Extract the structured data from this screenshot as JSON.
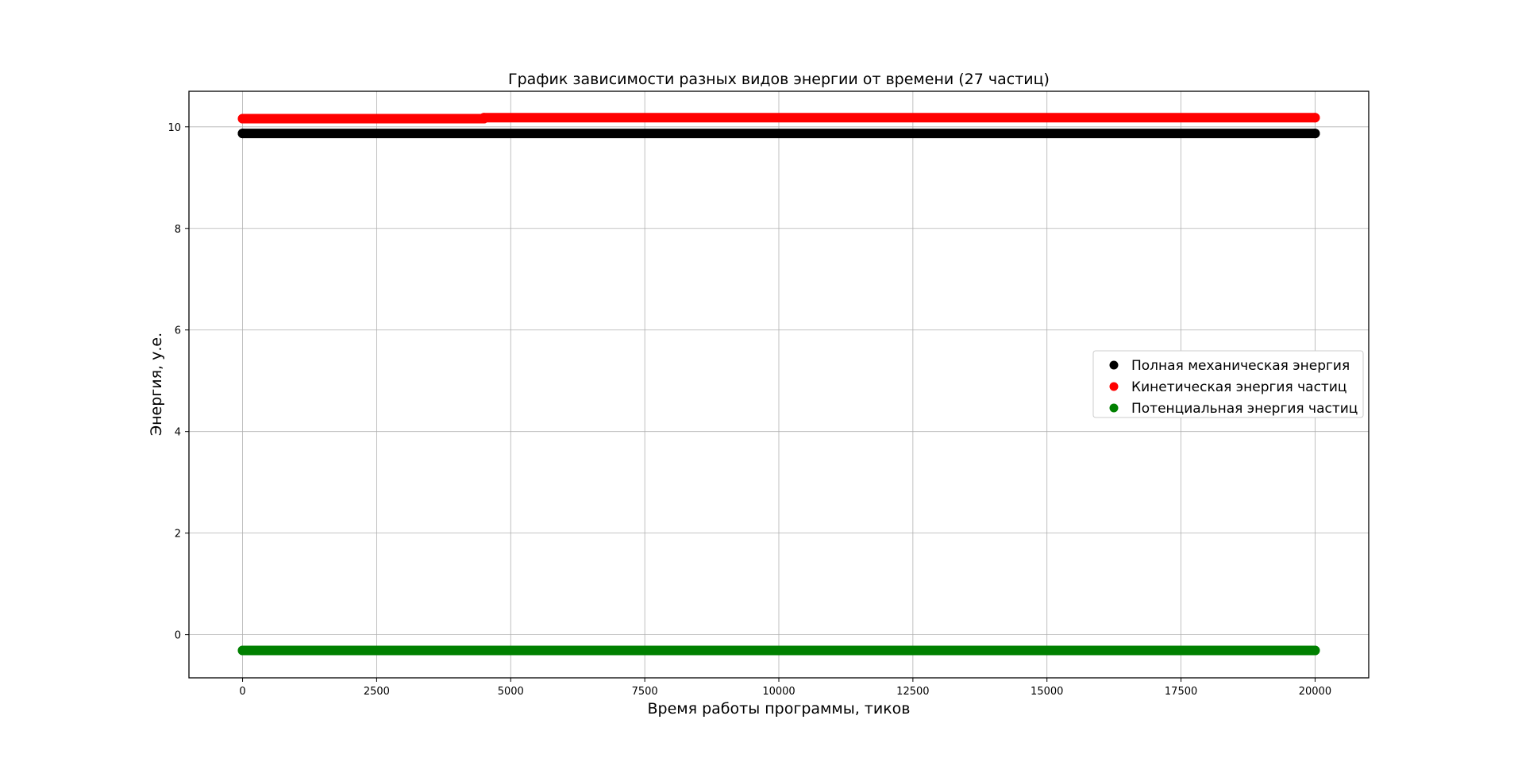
{
  "chart_data": {
    "type": "scatter",
    "title": "График зависимости разных видов энергии от времени (27 частиц)",
    "xlabel": "Время работы программы, тиков",
    "ylabel": "Энергия, у.е.",
    "xlim": [
      -1000,
      21000
    ],
    "ylim": [
      -0.85,
      10.7
    ],
    "xticks": [
      0,
      2500,
      5000,
      7500,
      10000,
      12500,
      15000,
      17500,
      20000
    ],
    "yticks": [
      0,
      2,
      4,
      6,
      8,
      10
    ],
    "grid": true,
    "legend_position": "center-right",
    "series": [
      {
        "name": "Полная механическая энергия",
        "color": "#000000",
        "points": [
          [
            0,
            9.87
          ],
          [
            20000,
            9.87
          ]
        ]
      },
      {
        "name": "Кинетическая энергия частиц",
        "color": "#ff0000",
        "points": [
          [
            0,
            10.16
          ],
          [
            4500,
            10.16
          ],
          [
            4500,
            10.18
          ],
          [
            20000,
            10.18
          ]
        ]
      },
      {
        "name": "Потенциальная энергия частиц",
        "color": "#008000",
        "points": [
          [
            0,
            -0.31
          ],
          [
            20000,
            -0.31
          ]
        ]
      }
    ]
  }
}
